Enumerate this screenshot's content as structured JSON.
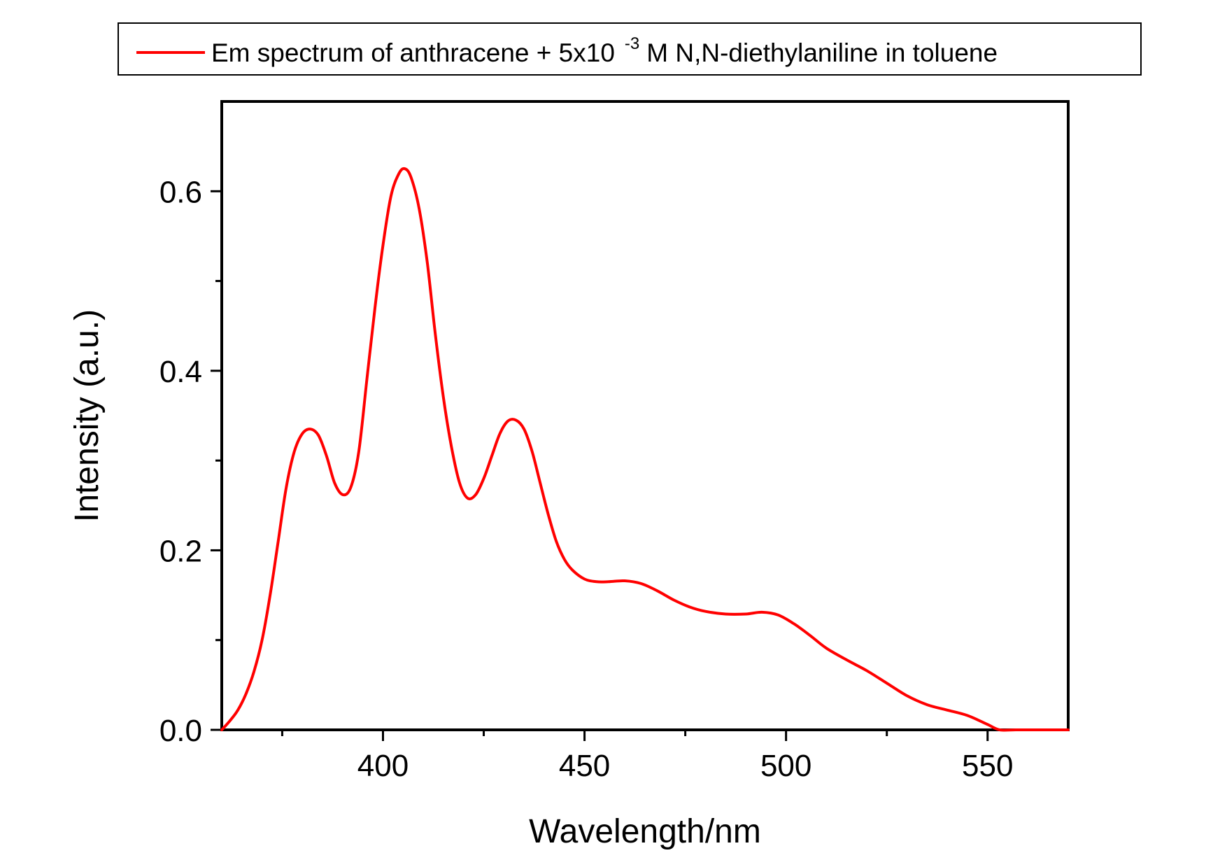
{
  "chart_data": {
    "type": "line",
    "xlabel": "Wavelength/nm",
    "ylabel": "Intensity (a.u.)",
    "xlim": [
      360,
      570
    ],
    "ylim": [
      0,
      0.7
    ],
    "x_ticks": [
      400,
      450,
      500,
      550
    ],
    "x_tick_labels": [
      "400",
      "450",
      "500",
      "550"
    ],
    "x_minor_ticks": [
      375,
      425,
      475,
      525
    ],
    "y_ticks": [
      0.0,
      0.2,
      0.4,
      0.6
    ],
    "y_tick_labels": [
      "0.0",
      "0.2",
      "0.4",
      "0.6"
    ],
    "y_minor_ticks": [
      0.1,
      0.3,
      0.5
    ],
    "grid": false,
    "legend_position": "top, above plot",
    "legend": {
      "prefix": "Em spectrum of anthracene + 5x10",
      "superscript": "-3",
      "suffix": "M N,N-diethylaniline in toluene"
    },
    "series": [
      {
        "color": "#ff0000",
        "x": [
          360,
          362,
          364,
          366,
          368,
          370,
          372,
          374,
          376,
          378,
          380,
          382,
          384,
          386,
          388,
          390,
          392,
          394,
          396,
          398,
          400,
          402,
          404,
          405.5,
          407,
          409,
          411,
          413,
          415,
          417,
          419,
          421,
          423,
          425,
          427,
          429,
          431,
          433,
          435,
          437,
          439,
          441,
          443,
          445,
          447,
          450,
          453,
          456,
          460,
          464,
          468,
          472,
          476,
          480,
          485,
          490,
          494,
          498,
          502,
          506,
          510,
          515,
          520,
          525,
          530,
          535,
          540,
          545,
          550,
          553,
          557,
          562,
          570
        ],
        "y": [
          0.0,
          0.01,
          0.022,
          0.04,
          0.065,
          0.1,
          0.15,
          0.21,
          0.27,
          0.31,
          0.33,
          0.335,
          0.328,
          0.305,
          0.275,
          0.262,
          0.27,
          0.31,
          0.39,
          0.47,
          0.54,
          0.595,
          0.62,
          0.625,
          0.615,
          0.58,
          0.52,
          0.44,
          0.37,
          0.315,
          0.275,
          0.258,
          0.262,
          0.28,
          0.305,
          0.33,
          0.344,
          0.345,
          0.335,
          0.31,
          0.275,
          0.24,
          0.21,
          0.19,
          0.178,
          0.168,
          0.165,
          0.165,
          0.166,
          0.163,
          0.155,
          0.145,
          0.137,
          0.132,
          0.129,
          0.129,
          0.131,
          0.128,
          0.118,
          0.105,
          0.091,
          0.078,
          0.066,
          0.052,
          0.038,
          0.028,
          0.022,
          0.016,
          0.006,
          0.0,
          0.0,
          0.0,
          0.0
        ]
      }
    ]
  }
}
